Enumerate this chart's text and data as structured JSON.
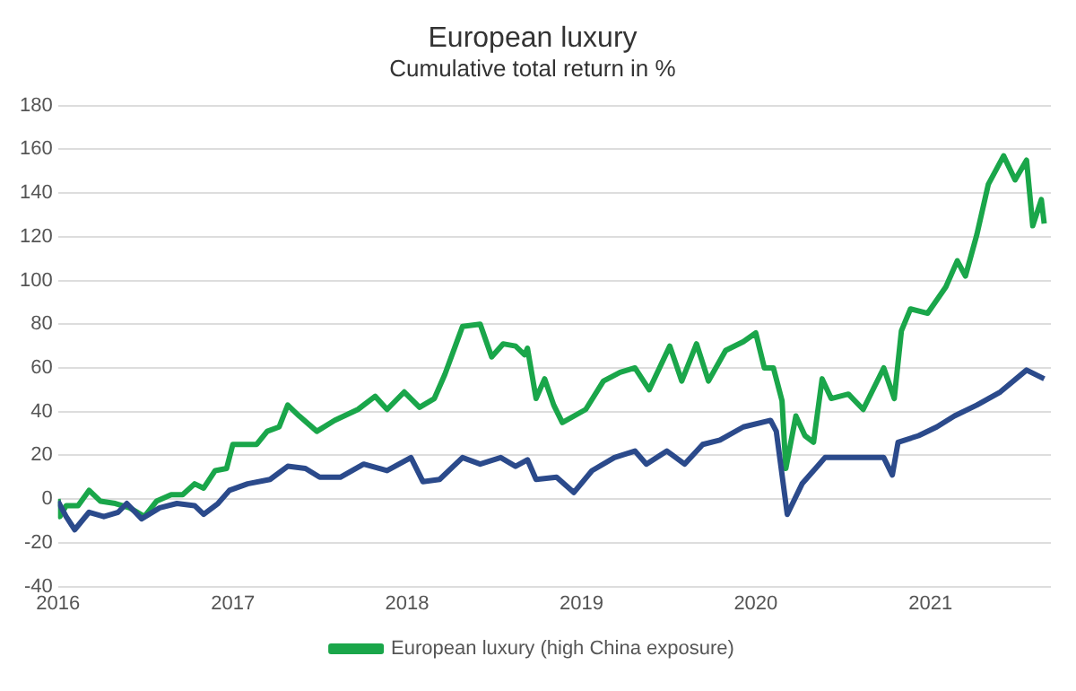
{
  "chart_data": {
    "type": "line",
    "title": "European luxury",
    "subtitle": "Cumulative total return in %",
    "xlim": [
      "2016-01-01",
      "2021-09-10"
    ],
    "xticks": [
      "2016",
      "2017",
      "2018",
      "2019",
      "2020",
      "2021"
    ],
    "ylim": [
      -40,
      180
    ],
    "yticks": [
      -40,
      -20,
      0,
      20,
      40,
      60,
      80,
      100,
      120,
      140,
      160,
      180
    ],
    "grid": "y",
    "legend": "bottom",
    "marker": "none",
    "line_style": "solid",
    "series": [
      {
        "color": "#2b4a8b",
        "x": [
          "2016-01-01",
          "2016-01-18",
          "2016-02-05",
          "2016-03-06",
          "2016-04-06",
          "2016-05-06",
          "2016-05-24",
          "2016-06-24",
          "2016-08-01",
          "2016-09-06",
          "2016-10-13",
          "2016-11-01",
          "2016-12-01",
          "2016-12-25",
          "2017-02-01",
          "2017-03-20",
          "2017-04-26",
          "2017-06-02",
          "2017-07-02",
          "2017-08-14",
          "2017-10-02",
          "2017-11-20",
          "2018-01-09",
          "2018-02-03",
          "2018-03-10",
          "2018-04-27",
          "2018-06-03",
          "2018-07-16",
          "2018-08-16",
          "2018-09-10",
          "2018-09-28",
          "2018-11-10",
          "2018-12-16",
          "2019-01-23",
          "2019-03-11",
          "2019-04-23",
          "2019-05-17",
          "2019-06-29",
          "2019-08-05",
          "2019-09-12",
          "2019-10-18",
          "2019-12-06",
          "2020-02-01",
          "2020-02-13",
          "2020-03-07",
          "2020-04-07",
          "2020-05-13",
          "2020-05-25",
          "2020-07-01",
          "2020-08-13",
          "2020-09-25",
          "2020-10-13",
          "2020-10-25",
          "2020-12-07",
          "2021-01-14",
          "2021-02-20",
          "2021-04-08",
          "2021-05-27",
          "2021-07-21",
          "2021-08-27"
        ],
        "values": [
          -1,
          -8,
          -14,
          -6,
          -8,
          -6,
          -2,
          -9,
          -4,
          -2,
          -3,
          -7,
          -2,
          4,
          7,
          9,
          15,
          14,
          10,
          10,
          16,
          13,
          19,
          8,
          9,
          19,
          16,
          19,
          15,
          18,
          9,
          10,
          3,
          13,
          19,
          22,
          16,
          22,
          16,
          25,
          27,
          33,
          36,
          31,
          -7,
          7,
          16,
          19,
          19,
          19,
          19,
          11,
          26,
          29,
          33,
          38,
          43,
          49,
          59,
          55
        ]
      },
      {
        "name": "European luxury (high China exposure)",
        "color": "#1aa64a",
        "x": [
          "2016-01-01",
          "2016-01-05",
          "2016-01-18",
          "2016-02-12",
          "2016-03-06",
          "2016-03-30",
          "2016-04-30",
          "2016-05-30",
          "2016-06-30",
          "2016-07-25",
          "2016-08-25",
          "2016-09-18",
          "2016-10-13",
          "2016-11-01",
          "2016-11-25",
          "2016-12-19",
          "2017-01-01",
          "2017-01-20",
          "2017-02-20",
          "2017-03-14",
          "2017-04-08",
          "2017-04-26",
          "2017-05-20",
          "2017-06-26",
          "2017-08-02",
          "2017-09-20",
          "2017-10-26",
          "2017-11-20",
          "2017-12-26",
          "2018-01-27",
          "2018-02-27",
          "2018-03-21",
          "2018-04-27",
          "2018-06-03",
          "2018-06-27",
          "2018-07-21",
          "2018-08-16",
          "2018-09-04",
          "2018-09-10",
          "2018-09-28",
          "2018-10-16",
          "2018-11-04",
          "2018-11-22",
          "2019-01-10",
          "2019-02-16",
          "2019-03-23",
          "2019-04-23",
          "2019-05-23",
          "2019-07-05",
          "2019-07-30",
          "2019-08-30",
          "2019-09-24",
          "2019-10-30",
          "2019-12-06",
          "2020-01-01",
          "2020-01-19",
          "2020-02-07",
          "2020-02-25",
          "2020-03-04",
          "2020-03-25",
          "2020-04-13",
          "2020-05-01",
          "2020-05-19",
          "2020-06-07",
          "2020-07-13",
          "2020-08-13",
          "2020-09-25",
          "2020-10-17",
          "2020-11-01",
          "2020-11-20",
          "2020-12-26",
          "2021-02-02",
          "2021-02-26",
          "2021-03-15",
          "2021-04-08",
          "2021-05-02",
          "2021-06-03",
          "2021-06-27",
          "2021-07-21",
          "2021-08-03",
          "2021-08-21",
          "2021-08-27"
        ],
        "values": [
          0,
          -8,
          -3,
          -3,
          4,
          -1,
          -2,
          -4,
          -8,
          -1,
          2,
          2,
          7,
          5,
          13,
          14,
          25,
          25,
          25,
          31,
          33,
          43,
          38,
          31,
          36,
          41,
          47,
          41,
          49,
          42,
          46,
          57,
          79,
          80,
          65,
          71,
          70,
          66,
          69,
          46,
          55,
          43,
          35,
          41,
          54,
          58,
          60,
          50,
          70,
          54,
          71,
          54,
          68,
          72,
          76,
          60,
          60,
          45,
          14,
          38,
          29,
          26,
          55,
          46,
          48,
          41,
          60,
          46,
          77,
          87,
          85,
          97,
          109,
          102,
          121,
          144,
          157,
          146,
          155,
          125,
          137,
          126
        ]
      }
    ]
  }
}
